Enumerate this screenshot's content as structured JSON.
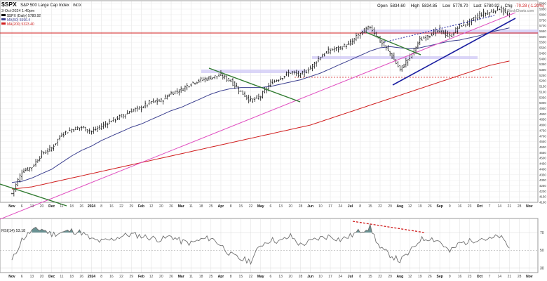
{
  "header": {
    "symbol": "$SPX",
    "name": "S&P 500 Large Cap Index",
    "exchange": "INDX",
    "date": "3-Oct-2024 1:40pm",
    "open_label": "Open",
    "open": "5834.60",
    "high_label": "High",
    "high": "5834.85",
    "low_label": "Low",
    "low": "5779.70",
    "last_label": "Last",
    "last": "5780.92",
    "chg_label": "Chg",
    "chg": "-70.28 (-1.20%)",
    "watermark": "© StockCharts.com"
  },
  "legend": {
    "price": "$SPX (Daily) 5780.92",
    "ma50": "MA(50) 5596.4",
    "ma200": "MA(200) 5323.40"
  },
  "rsi_label": "RSI(14) 53.18",
  "colors": {
    "ma50": "#3b3f8f",
    "ma200": "#d01e1e",
    "pink": "#e04fc0",
    "green": "#2f7a2f",
    "blue": "#1b1fa0",
    "band": "#cfc8f5",
    "rsi_fill": "#4f7f80"
  },
  "chart_data": [
    {
      "type": "line",
      "title": "$SPX (Daily) 5780.92",
      "ylim": [
        4100,
        5920
      ],
      "y_ticks": [
        4100,
        4150,
        4200,
        4250,
        4300,
        4350,
        4400,
        4450,
        4500,
        4550,
        4600,
        4650,
        4700,
        4750,
        4800,
        4850,
        4900,
        4950,
        5000,
        5050,
        5100,
        5150,
        5200,
        5250,
        5300,
        5350,
        5400,
        5450,
        5500,
        5550,
        5600,
        5650,
        5700,
        5750,
        5800,
        5850,
        5900
      ],
      "x_ticks": [
        "Nov",
        "6",
        "13",
        "20",
        "Dec",
        "11",
        "18",
        "26",
        "2024",
        "8",
        "16",
        "22",
        "29",
        "Feb",
        "12",
        "20",
        "26",
        "Mar",
        "11",
        "18",
        "25",
        "Apr",
        "8",
        "15",
        "22",
        "May",
        "6",
        "13",
        "20",
        "28",
        "Jun",
        "10",
        "17",
        "24",
        "Jul",
        "8",
        "15",
        "22",
        "29",
        "Aug",
        "12",
        "19",
        "26",
        "Sep",
        "9",
        "16",
        "23",
        "Oct",
        "7",
        "14",
        "21",
        "28",
        "Nov",
        "11"
      ],
      "x": [
        "2023-10-30",
        "2023-11-06",
        "2023-11-13",
        "2023-11-20",
        "2023-12-01",
        "2023-12-11",
        "2023-12-18",
        "2023-12-26",
        "2024-01-02",
        "2024-01-08",
        "2024-01-16",
        "2024-01-22",
        "2024-01-29",
        "2024-02-01",
        "2024-02-12",
        "2024-02-20",
        "2024-02-26",
        "2024-03-01",
        "2024-03-11",
        "2024-03-18",
        "2024-03-25",
        "2024-04-01",
        "2024-04-08",
        "2024-04-15",
        "2024-04-22",
        "2024-05-01",
        "2024-05-06",
        "2024-05-13",
        "2024-05-20",
        "2024-05-28",
        "2024-06-03",
        "2024-06-10",
        "2024-06-17",
        "2024-06-24",
        "2024-07-01",
        "2024-07-08",
        "2024-07-15",
        "2024-07-22",
        "2024-07-29",
        "2024-08-01",
        "2024-08-12",
        "2024-08-19",
        "2024-08-26",
        "2024-09-03",
        "2024-09-09",
        "2024-09-16",
        "2024-09-23",
        "2024-10-01",
        "2024-10-07",
        "2024-10-14",
        "2024-10-21",
        "2024-10-28",
        "2024-11-01",
        "2024-11-11"
      ],
      "series": [
        {
          "name": "$SPX (Daily) 5780.92",
          "values": [
            4180,
            4380,
            4420,
            4540,
            4590,
            4720,
            4760,
            4780,
            4740,
            4790,
            4840,
            4880,
            4930,
            4960,
            5010,
            5020,
            5090,
            5120,
            5180,
            5210,
            5230,
            5250,
            5200,
            5100,
            5020,
            5060,
            5180,
            5230,
            5280,
            5250,
            5320,
            5420,
            5480,
            5500,
            5540,
            5630,
            5690,
            5560,
            5450,
            5300,
            5420,
            5570,
            5620,
            5660,
            5600,
            5700,
            5730,
            5800,
            5820,
            5860,
            5780,
            null,
            null,
            null
          ]
        },
        {
          "name": "MA(50) 5596.4",
          "values": [
            4280,
            4290,
            4320,
            4360,
            4400,
            4460,
            4520,
            4570,
            4610,
            4660,
            4700,
            4740,
            4780,
            4810,
            4850,
            4890,
            4930,
            4960,
            5000,
            5040,
            5080,
            5110,
            5130,
            5140,
            5140,
            5140,
            5150,
            5170,
            5190,
            5210,
            5240,
            5270,
            5310,
            5350,
            5390,
            5430,
            5470,
            5500,
            5510,
            5500,
            5490,
            5500,
            5520,
            5540,
            5560,
            5570,
            5590,
            5610,
            5640,
            5660,
            5680,
            null,
            null,
            null
          ]
        },
        {
          "name": "MA(200) 5323.40",
          "values": [
            4220,
            4230,
            4240,
            4260,
            4280,
            4300,
            4320,
            4340,
            4360,
            4380,
            4400,
            4420,
            4440,
            4460,
            4480,
            4500,
            4520,
            4540,
            4560,
            4580,
            4600,
            4620,
            4640,
            4660,
            4680,
            4700,
            4720,
            4740,
            4760,
            4780,
            4800,
            4830,
            4860,
            4890,
            4920,
            4950,
            4980,
            5010,
            5040,
            5070,
            5100,
            5130,
            5160,
            5190,
            5220,
            5250,
            5280,
            5310,
            5340,
            5360,
            5380,
            null,
            null,
            null
          ]
        }
      ],
      "xlabel": "",
      "ylabel": "",
      "grid": true,
      "legend": "top-left"
    },
    {
      "type": "line",
      "title": "RSI(14) 53.18",
      "ylim": [
        25,
        85
      ],
      "y_ticks": [
        30,
        50,
        70
      ],
      "series": [
        {
          "name": "RSI(14) 53.18",
          "values": [
            38,
            62,
            72,
            74,
            68,
            70,
            72,
            70,
            62,
            60,
            62,
            66,
            68,
            66,
            64,
            62,
            66,
            60,
            58,
            62,
            64,
            56,
            45,
            40,
            38,
            56,
            62,
            60,
            66,
            56,
            60,
            64,
            66,
            62,
            66,
            72,
            76,
            52,
            45,
            38,
            48,
            62,
            64,
            60,
            48,
            58,
            60,
            64,
            62,
            66,
            53,
            null,
            null,
            null
          ]
        }
      ],
      "grid": true
    }
  ]
}
